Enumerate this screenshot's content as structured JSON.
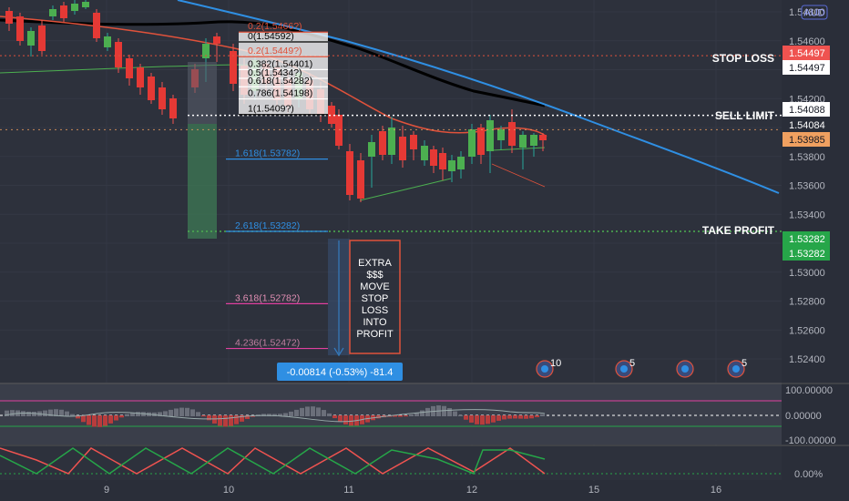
{
  "currency": "AUD",
  "chart_data": {
    "type": "candlestick",
    "y_axis": {
      "min": 1.523,
      "max": 1.549,
      "ticks": [
        "1.54800",
        "1.54600",
        "1.54400",
        "1.54200",
        "1.54000",
        "1.53800",
        "1.53600",
        "1.53400",
        "1.53200",
        "1.53000",
        "1.52800",
        "1.52600",
        "1.52400"
      ]
    },
    "x_ticks": [
      "9",
      "10",
      "11",
      "12",
      "15",
      "16"
    ],
    "price_tags": [
      {
        "label": "1.54497",
        "value": 1.54497,
        "style": "red"
      },
      {
        "label": "1.54497",
        "value": 1.54497,
        "style": "white"
      },
      {
        "label": "1.54088",
        "value": 1.54088,
        "style": "white"
      },
      {
        "label": "1.54084",
        "value": 1.54084,
        "style": "dark"
      },
      {
        "label": "1.53985",
        "value": 1.53985,
        "style": "orange"
      },
      {
        "label": "1.53282",
        "value": 1.53282,
        "style": "green"
      },
      {
        "label": "1.53282",
        "value": 1.53282,
        "style": "green"
      }
    ],
    "levels": [
      {
        "label": "STOP LOSS",
        "value": 1.54497
      },
      {
        "label": "SELL LIMIT",
        "value": 1.54084
      },
      {
        "label": "TAKE PROFIT",
        "value": 1.53282
      }
    ],
    "fib_levels": [
      {
        "label": "0.2(1.5466?)",
        "value": 1.5466
      },
      {
        "label": "0(1.54592)",
        "value": 1.54592
      },
      {
        "label": "0.2(1.5449?)",
        "value": 1.5449
      },
      {
        "label": "0.382(1.54401)",
        "value": 1.54401
      },
      {
        "label": "0.5(1.5434?)",
        "value": 1.5434
      },
      {
        "label": "0.618(1.54282)",
        "value": 1.54282
      },
      {
        "label": "0.786(1.54198)",
        "value": 1.54198
      },
      {
        "label": "1(1.5409?)",
        "value": 1.5409
      },
      {
        "label": "1.618(1.53782)",
        "value": 1.53782
      },
      {
        "label": "2.618(1.53282)",
        "value": 1.53282
      },
      {
        "label": "3.618(1.52782)",
        "value": 1.52782
      },
      {
        "label": "4.236(1.52472)",
        "value": 1.52472
      }
    ],
    "note_lines": [
      "EXTRA",
      "$$$",
      "MOVE",
      "STOP",
      "LOSS",
      "INTO",
      "PROFIT"
    ],
    "measure_label": "-0.00814 (-0.53%) -81.4",
    "event_badges": [
      "10",
      "5",
      "",
      "5"
    ],
    "oscillator1": {
      "ticks": [
        "100.00000",
        "0.00000",
        "-100.00000"
      ]
    },
    "oscillator2": {
      "ticks": [
        "0.00%"
      ]
    }
  }
}
